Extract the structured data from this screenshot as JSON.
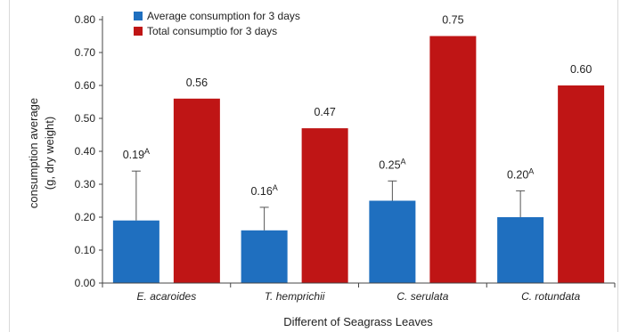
{
  "chart_data": {
    "type": "bar",
    "categories": [
      "E. acaroides",
      "T. hemprichii",
      "C. serulata",
      "C. rotundata"
    ],
    "series": [
      {
        "name": "Average consumption for 3 days",
        "color": "#1f6fbf",
        "values": [
          0.19,
          0.16,
          0.25,
          0.2
        ],
        "error": [
          0.15,
          0.07,
          0.06,
          0.08
        ],
        "labels": [
          "0.19",
          "0.16",
          "0.25",
          "0.20"
        ],
        "label_superscript": "A"
      },
      {
        "name": "Total consumptio for 3 days",
        "color": "#bf1515",
        "values": [
          0.56,
          0.47,
          0.75,
          0.6
        ],
        "labels": [
          "0.56",
          "0.47",
          "0.75",
          "0.60"
        ]
      }
    ],
    "yticks": [
      "0.00",
      "0.10",
      "0.20",
      "0.30",
      "0.40",
      "0.50",
      "0.60",
      "0.70",
      "0.80"
    ],
    "ylim": [
      0,
      0.8
    ],
    "ylabel_line1": "consumption average",
    "ylabel_line2": "(g, dry weight)",
    "xlabel": "Different of Seagrass Leaves",
    "legend_position": "top-left",
    "grid": false
  }
}
